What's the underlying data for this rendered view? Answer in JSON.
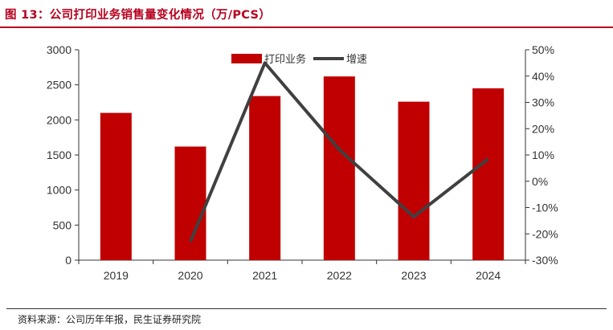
{
  "header": {
    "title": "图 13：公司打印业务销售量变化情况（万/PCS）"
  },
  "footer": {
    "source": "资料来源：公司历年年报，民生证券研究院"
  },
  "colors": {
    "bar": "#c00000",
    "line": "#404040",
    "accent": "#b8001e"
  },
  "chart_data": {
    "type": "bar",
    "title": "",
    "categories": [
      "2019",
      "2020",
      "2021",
      "2022",
      "2023",
      "2024"
    ],
    "series": [
      {
        "name": "打印业务",
        "type": "bar",
        "axis": "left",
        "values": [
          2100,
          1620,
          2340,
          2620,
          2260,
          2450
        ]
      },
      {
        "name": "增速",
        "type": "line",
        "axis": "right",
        "values": [
          null,
          -23,
          45,
          12,
          -13.5,
          8.5
        ]
      }
    ],
    "ylim_left": [
      0,
      3000
    ],
    "yticks_left": [
      "0",
      "500",
      "1000",
      "1500",
      "2000",
      "2500",
      "3000"
    ],
    "ylim_right": [
      -30,
      50
    ],
    "yticks_right": [
      "-30%",
      "-20%",
      "-10%",
      "0%",
      "10%",
      "20%",
      "30%",
      "40%",
      "50%"
    ],
    "legend": {
      "position": "top-center",
      "labels": [
        "打印业务",
        "增速"
      ]
    },
    "grid": false
  }
}
